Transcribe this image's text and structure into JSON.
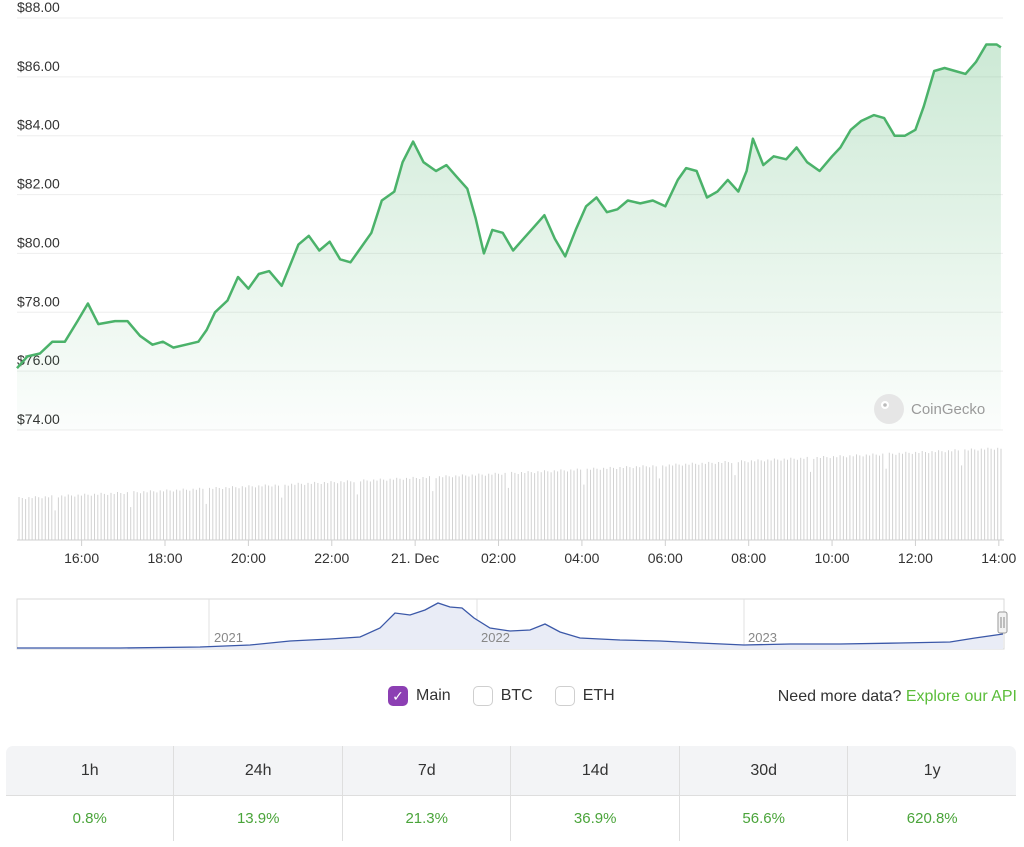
{
  "chart_data": {
    "type": "area",
    "y_tick_labels": [
      "$74.00",
      "$76.00",
      "$78.00",
      "$80.00",
      "$82.00",
      "$84.00",
      "$86.00",
      "$88.00"
    ],
    "ylim": [
      74,
      88
    ],
    "x_tick_labels": [
      "16:00",
      "18:00",
      "20:00",
      "22:00",
      "21. Dec",
      "02:00",
      "04:00",
      "06:00",
      "08:00",
      "10:00",
      "12:00",
      "14:00"
    ],
    "x_tick_hours": [
      16,
      18,
      20,
      22,
      24,
      26,
      28,
      30,
      32,
      34,
      36,
      38
    ],
    "x_range_hours": [
      14.45,
      38.1
    ],
    "price_points": [
      [
        14.45,
        76.1
      ],
      [
        14.7,
        76.5
      ],
      [
        15.0,
        76.6
      ],
      [
        15.3,
        77.0
      ],
      [
        15.6,
        77.0
      ],
      [
        15.9,
        77.7
      ],
      [
        16.15,
        78.3
      ],
      [
        16.4,
        77.6
      ],
      [
        16.8,
        77.7
      ],
      [
        17.1,
        77.7
      ],
      [
        17.4,
        77.2
      ],
      [
        17.7,
        76.9
      ],
      [
        17.95,
        77.0
      ],
      [
        18.2,
        76.8
      ],
      [
        18.5,
        76.9
      ],
      [
        18.8,
        77.0
      ],
      [
        19.0,
        77.4
      ],
      [
        19.2,
        78.0
      ],
      [
        19.5,
        78.4
      ],
      [
        19.75,
        79.2
      ],
      [
        20.0,
        78.8
      ],
      [
        20.25,
        79.3
      ],
      [
        20.5,
        79.4
      ],
      [
        20.8,
        78.9
      ],
      [
        21.0,
        79.6
      ],
      [
        21.2,
        80.3
      ],
      [
        21.45,
        80.6
      ],
      [
        21.7,
        80.1
      ],
      [
        21.95,
        80.4
      ],
      [
        22.2,
        79.8
      ],
      [
        22.45,
        79.7
      ],
      [
        22.7,
        80.2
      ],
      [
        22.95,
        80.7
      ],
      [
        23.2,
        81.8
      ],
      [
        23.5,
        82.1
      ],
      [
        23.7,
        83.1
      ],
      [
        23.95,
        83.8
      ],
      [
        24.2,
        83.1
      ],
      [
        24.5,
        82.8
      ],
      [
        24.75,
        83.0
      ],
      [
        25.0,
        82.6
      ],
      [
        25.25,
        82.2
      ],
      [
        25.45,
        81.2
      ],
      [
        25.65,
        80.0
      ],
      [
        25.85,
        80.8
      ],
      [
        26.1,
        80.7
      ],
      [
        26.35,
        80.1
      ],
      [
        26.6,
        80.5
      ],
      [
        26.85,
        80.9
      ],
      [
        27.1,
        81.3
      ],
      [
        27.35,
        80.5
      ],
      [
        27.6,
        79.9
      ],
      [
        27.85,
        80.8
      ],
      [
        28.1,
        81.6
      ],
      [
        28.35,
        81.9
      ],
      [
        28.6,
        81.4
      ],
      [
        28.85,
        81.5
      ],
      [
        29.1,
        81.8
      ],
      [
        29.4,
        81.7
      ],
      [
        29.7,
        81.8
      ],
      [
        30.0,
        81.6
      ],
      [
        30.3,
        82.5
      ],
      [
        30.5,
        82.9
      ],
      [
        30.75,
        82.8
      ],
      [
        31.0,
        81.9
      ],
      [
        31.25,
        82.1
      ],
      [
        31.5,
        82.5
      ],
      [
        31.75,
        82.1
      ],
      [
        31.95,
        82.8
      ],
      [
        32.1,
        83.9
      ],
      [
        32.35,
        83.0
      ],
      [
        32.6,
        83.3
      ],
      [
        32.9,
        83.2
      ],
      [
        33.15,
        83.6
      ],
      [
        33.4,
        83.1
      ],
      [
        33.7,
        82.8
      ],
      [
        34.0,
        83.3
      ],
      [
        34.2,
        83.6
      ],
      [
        34.45,
        84.2
      ],
      [
        34.7,
        84.5
      ],
      [
        35.0,
        84.7
      ],
      [
        35.25,
        84.6
      ],
      [
        35.5,
        84.0
      ],
      [
        35.75,
        84.0
      ],
      [
        36.0,
        84.2
      ],
      [
        36.2,
        85.0
      ],
      [
        36.45,
        86.2
      ],
      [
        36.7,
        86.3
      ],
      [
        36.95,
        86.2
      ],
      [
        37.2,
        86.1
      ],
      [
        37.45,
        86.5
      ],
      [
        37.7,
        87.1
      ],
      [
        37.95,
        87.1
      ],
      [
        38.05,
        87.0
      ]
    ],
    "grid": true,
    "line_color": "#4bb26a",
    "navigator": {
      "year_labels": [
        "2021",
        "2022",
        "2023"
      ],
      "line_color": "#3b58a8"
    },
    "watermark": "CoinGecko"
  },
  "toggles": [
    {
      "label": "Main",
      "checked": true
    },
    {
      "label": "BTC",
      "checked": false
    },
    {
      "label": "ETH",
      "checked": false
    }
  ],
  "more_data": {
    "text": "Need more data?",
    "link": "Explore our API"
  },
  "performance": {
    "headers": [
      "1h",
      "24h",
      "7d",
      "14d",
      "30d",
      "1y"
    ],
    "values": [
      "0.8%",
      "13.9%",
      "21.3%",
      "36.9%",
      "56.6%",
      "620.8%"
    ],
    "value_color": "#4aa43a"
  }
}
